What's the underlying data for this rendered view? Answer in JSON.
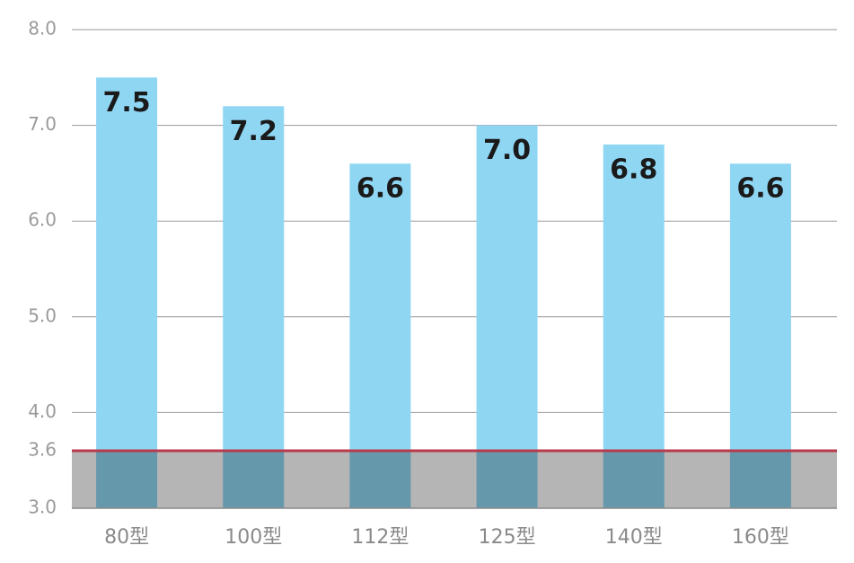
{
  "chart_data": {
    "type": "bar",
    "categories": [
      "80型",
      "100型",
      "112型",
      "125型",
      "140型",
      "160型"
    ],
    "values": [
      7.5,
      7.2,
      6.6,
      7.0,
      6.8,
      6.6
    ],
    "value_labels": [
      "7.5",
      "7.2",
      "6.6",
      "7.0",
      "6.8",
      "6.6"
    ],
    "color": "#8fd6f3",
    "ylim": [
      3.0,
      8.0
    ],
    "yticks": [
      {
        "value": 3.0,
        "label": "3.0"
      },
      {
        "value": 3.6,
        "label": "3.6"
      },
      {
        "value": 4.0,
        "label": "4.0"
      },
      {
        "value": 5.0,
        "label": "5.0"
      },
      {
        "value": 6.0,
        "label": "6.0"
      },
      {
        "value": 7.0,
        "label": "7.0"
      },
      {
        "value": 8.0,
        "label": "8.0"
      }
    ],
    "grid": true,
    "reference_line_color": "#b83a4b",
    "band_color": "#b5b5b5"
  }
}
